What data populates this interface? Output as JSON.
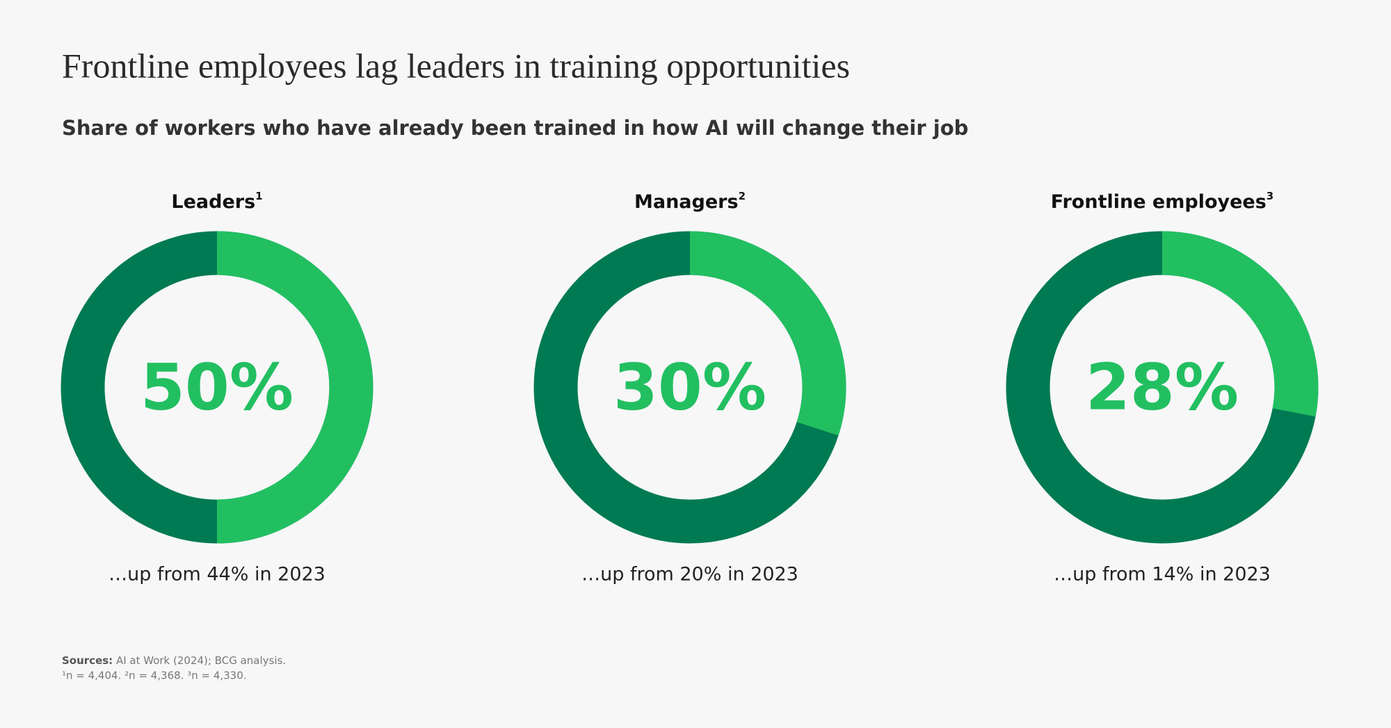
{
  "title": "Frontline employees lag leaders in training opportunities",
  "subtitle": "Share of workers who have already been trained in how AI will change their job",
  "chart_data": [
    {
      "type": "donut",
      "title": "Leaders",
      "title_sup": "1",
      "values": [
        50
      ],
      "value_labels": [
        "50%"
      ],
      "color": "#22bf61",
      "track_color": "#007a52",
      "note": "…up from 44% in 2023"
    },
    {
      "type": "donut",
      "title": "Managers",
      "title_sup": "2",
      "values": [
        30
      ],
      "value_labels": [
        "30%"
      ],
      "color": "#22bf61",
      "track_color": "#007a52",
      "note": "…up from 20% in 2023"
    },
    {
      "type": "donut",
      "title": "Frontline employees",
      "title_sup": "3",
      "values": [
        28
      ],
      "value_labels": [
        "28%"
      ],
      "color": "#22bf61",
      "track_color": "#007a52",
      "note": "…up from 14% in 2023"
    }
  ],
  "sources": {
    "label": "Sources:",
    "text": "AI at Work (2024); BCG analysis."
  },
  "footnote": "¹n = 4,404. ²n = 4,368. ³n = 4,330."
}
